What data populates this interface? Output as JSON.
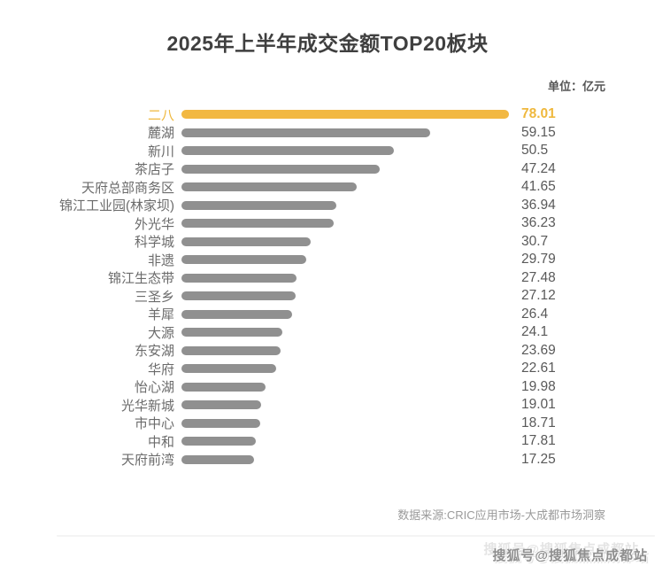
{
  "title": "2025年上半年成交金额TOP20板块",
  "unit_label": "单位：亿元",
  "source": "数据来源:CRIC应用市场-大成都市场洞察",
  "watermark": "搜狐号@搜狐焦点成都站",
  "colors": {
    "highlight": "#f2b842",
    "highlight_text": "#efb83d",
    "bar_gray": "#909090",
    "label_gray": "#6b6b6b",
    "value_gray": "#595959",
    "title_color": "#3f3f3f",
    "unit_color": "#555555",
    "source_gray": "#9b9b9b"
  },
  "chart_data": {
    "type": "bar",
    "orientation": "horizontal",
    "title": "2025年上半年成交金额TOP20板块",
    "unit": "亿元",
    "legend": false,
    "grid": false,
    "max_value": 78.01,
    "highlighted_index": 0,
    "categories": [
      "二八",
      "麓湖",
      "新川",
      "茶店子",
      "天府总部商务区",
      "锦江工业园(林家坝)",
      "外光华",
      "科学城",
      "非遗",
      "锦江生态带",
      "三圣乡",
      "羊犀",
      "大源",
      "东安湖",
      "华府",
      "怡心湖",
      "光华新城",
      "市中心",
      "中和",
      "天府前湾"
    ],
    "values": [
      78.01,
      59.15,
      50.5,
      47.24,
      41.65,
      36.94,
      36.23,
      30.7,
      29.79,
      27.48,
      27.12,
      26.4,
      24.1,
      23.69,
      22.61,
      19.98,
      19.01,
      18.71,
      17.81,
      17.25
    ]
  }
}
